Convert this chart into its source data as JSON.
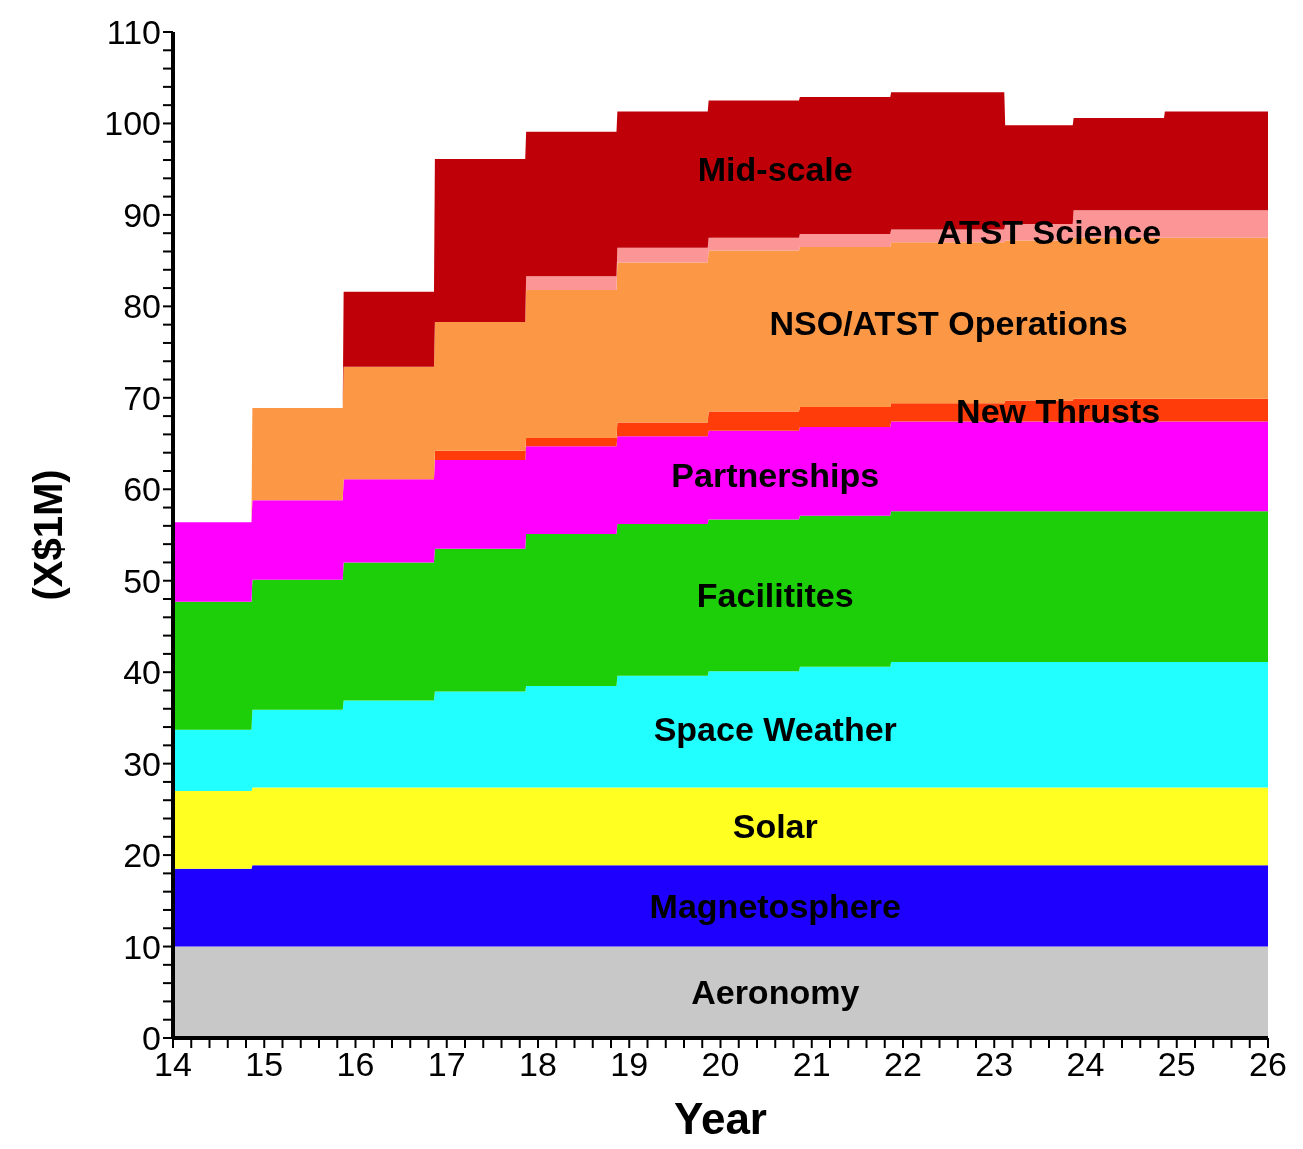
{
  "chart_data": {
    "type": "area",
    "stacked": true,
    "xlabel": "Year",
    "ylabel": "(X$1M)",
    "x": [
      14,
      14.86,
      14.87,
      15.86,
      15.87,
      16.86,
      16.87,
      17.86,
      17.87,
      18.86,
      18.87,
      19.86,
      19.87,
      20.86,
      20.87,
      21.86,
      21.87,
      23.11,
      23.12,
      23.86,
      23.87,
      24.86,
      24.87,
      26
    ],
    "xlim": [
      14,
      26
    ],
    "ylim": [
      0,
      110
    ],
    "xticks": [
      14,
      {
        "value": 14.2,
        "label": null
      },
      {
        "value": 14.4,
        "label": null
      },
      {
        "value": 14.6,
        "label": null
      },
      {
        "value": 14.8,
        "label": null
      },
      15,
      {
        "value": 15.2,
        "label": null
      },
      {
        "value": 15.4,
        "label": null
      },
      {
        "value": 15.6,
        "label": null
      },
      {
        "value": 15.8,
        "label": null
      },
      16,
      {
        "value": 16.2,
        "label": null
      },
      {
        "value": 16.4,
        "label": null
      },
      {
        "value": 16.6,
        "label": null
      },
      {
        "value": 16.8,
        "label": null
      },
      17,
      {
        "value": 17.2,
        "label": null
      },
      {
        "value": 17.4,
        "label": null
      },
      {
        "value": 17.6,
        "label": null
      },
      {
        "value": 17.8,
        "label": null
      },
      18,
      {
        "value": 18.2,
        "label": null
      },
      {
        "value": 18.4,
        "label": null
      },
      {
        "value": 18.6,
        "label": null
      },
      {
        "value": 18.8,
        "label": null
      },
      19,
      {
        "value": 19.2,
        "label": null
      },
      {
        "value": 19.4,
        "label": null
      },
      {
        "value": 19.6,
        "label": null
      },
      {
        "value": 19.8,
        "label": null
      },
      20,
      {
        "value": 20.2,
        "label": null
      },
      {
        "value": 20.4,
        "label": null
      },
      {
        "value": 20.6,
        "label": null
      },
      {
        "value": 20.8,
        "label": null
      },
      21,
      {
        "value": 21.2,
        "label": null
      },
      {
        "value": 21.4,
        "label": null
      },
      {
        "value": 21.6,
        "label": null
      },
      {
        "value": 21.8,
        "label": null
      },
      22,
      {
        "value": 22.2,
        "label": null
      },
      {
        "value": 22.4,
        "label": null
      },
      {
        "value": 22.6,
        "label": null
      },
      {
        "value": 22.8,
        "label": null
      },
      23,
      {
        "value": 23.2,
        "label": null
      },
      {
        "value": 23.4,
        "label": null
      },
      {
        "value": 23.6,
        "label": null
      },
      {
        "value": 23.8,
        "label": null
      },
      24,
      {
        "value": 24.2,
        "label": null
      },
      {
        "value": 24.4,
        "label": null
      },
      {
        "value": 24.6,
        "label": null
      },
      {
        "value": 24.8,
        "label": null
      },
      25,
      {
        "value": 25.2,
        "label": null
      },
      {
        "value": 25.4,
        "label": null
      },
      {
        "value": 25.6,
        "label": null
      },
      {
        "value": 25.8,
        "label": null
      },
      26
    ],
    "yticks": [
      0,
      {
        "value": 2,
        "label": null
      },
      {
        "value": 4,
        "label": null
      },
      {
        "value": 6,
        "label": null
      },
      {
        "value": 8,
        "label": null
      },
      10,
      {
        "value": 12,
        "label": null
      },
      {
        "value": 14,
        "label": null
      },
      {
        "value": 16,
        "label": null
      },
      {
        "value": 18,
        "label": null
      },
      20,
      {
        "value": 22,
        "label": null
      },
      {
        "value": 24,
        "label": null
      },
      {
        "value": 26,
        "label": null
      },
      {
        "value": 28,
        "label": null
      },
      30,
      {
        "value": 32,
        "label": null
      },
      {
        "value": 34,
        "label": null
      },
      {
        "value": 36,
        "label": null
      },
      {
        "value": 38,
        "label": null
      },
      40,
      {
        "value": 42,
        "label": null
      },
      {
        "value": 44,
        "label": null
      },
      {
        "value": 46,
        "label": null
      },
      {
        "value": 48,
        "label": null
      },
      50,
      {
        "value": 52,
        "label": null
      },
      {
        "value": 54,
        "label": null
      },
      {
        "value": 56,
        "label": null
      },
      {
        "value": 58,
        "label": null
      },
      60,
      {
        "value": 62,
        "label": null
      },
      {
        "value": 64,
        "label": null
      },
      {
        "value": 66,
        "label": null
      },
      {
        "value": 68,
        "label": null
      },
      70,
      {
        "value": 72,
        "label": null
      },
      {
        "value": 74,
        "label": null
      },
      {
        "value": 76,
        "label": null
      },
      {
        "value": 78,
        "label": null
      },
      80,
      {
        "value": 82,
        "label": null
      },
      {
        "value": 84,
        "label": null
      },
      {
        "value": 86,
        "label": null
      },
      {
        "value": 88,
        "label": null
      },
      90,
      {
        "value": 92,
        "label": null
      },
      {
        "value": 94,
        "label": null
      },
      {
        "value": 96,
        "label": null
      },
      {
        "value": 98,
        "label": null
      },
      100,
      {
        "value": 102,
        "label": null
      },
      {
        "value": 104,
        "label": null
      },
      {
        "value": 106,
        "label": null
      },
      {
        "value": 108,
        "label": null
      },
      110
    ],
    "series": [
      {
        "name": "Aeronomy",
        "color": "#c8c8c8",
        "values": [
          10,
          10,
          10,
          10,
          10,
          10,
          10,
          10,
          10,
          10,
          10,
          10,
          10,
          10,
          10,
          10,
          10,
          10,
          10,
          10,
          10,
          10,
          10,
          10
        ]
      },
      {
        "name": "Magnetosphere",
        "color": "#1e00ff",
        "values": [
          8.5,
          8.5,
          8.9,
          8.9,
          8.9,
          8.9,
          8.9,
          8.9,
          8.9,
          8.9,
          8.9,
          8.9,
          8.9,
          8.9,
          8.9,
          8.9,
          8.9,
          8.9,
          8.9,
          8.9,
          8.9,
          8.9,
          8.9,
          8.9
        ]
      },
      {
        "name": "Solar",
        "color": "#ffff22",
        "values": [
          8.5,
          8.5,
          8.5,
          8.5,
          8.5,
          8.5,
          8.5,
          8.5,
          8.5,
          8.5,
          8.5,
          8.5,
          8.5,
          8.5,
          8.5,
          8.5,
          8.5,
          8.5,
          8.5,
          8.5,
          8.5,
          8.5,
          8.5,
          8.5
        ]
      },
      {
        "name": "Space Weather",
        "color": "#22ffff",
        "values": [
          6.7,
          6.7,
          8.5,
          8.5,
          9.5,
          9.5,
          10.5,
          10.5,
          11.1,
          11.1,
          12.2,
          12.2,
          12.7,
          12.7,
          13.2,
          13.2,
          13.7,
          13.7,
          13.7,
          13.7,
          13.7,
          13.7,
          13.7,
          13.7
        ]
      },
      {
        "name": "Facilitites",
        "color": "#1ccf08",
        "values": [
          14.0,
          14.0,
          14.2,
          14.2,
          15.1,
          15.1,
          15.6,
          15.6,
          16.6,
          16.6,
          16.6,
          16.6,
          16.6,
          16.6,
          16.5,
          16.5,
          16.5,
          16.5,
          16.5,
          16.5,
          16.5,
          16.5,
          16.5,
          16.5
        ]
      },
      {
        "name": "Partnerships",
        "color": "#ff00ff",
        "values": [
          8.7,
          8.7,
          8.7,
          8.7,
          9.1,
          9.1,
          9.7,
          9.7,
          9.6,
          9.6,
          9.6,
          9.6,
          9.7,
          9.7,
          9.7,
          9.7,
          9.8,
          9.8,
          9.8,
          9.8,
          9.8,
          9.8,
          9.8,
          9.8
        ]
      },
      {
        "name": "New Thrusts",
        "color": "#ff3c0a",
        "values": [
          0,
          0,
          0,
          0,
          0,
          0,
          1.0,
          1.0,
          0.9,
          0.9,
          1.5,
          1.5,
          2.1,
          2.1,
          2.2,
          2.2,
          2.0,
          2.0,
          2.3,
          2.3,
          2.5,
          2.5,
          2.5,
          2.5
        ]
      },
      {
        "name": "NSO/ATST Operations",
        "color": "#fc9845",
        "values": [
          0,
          0,
          10.1,
          10.1,
          12.3,
          12.3,
          14.1,
          14.1,
          16.2,
          16.2,
          17.5,
          17.5,
          17.6,
          17.6,
          17.5,
          17.5,
          17.6,
          17.6,
          17.5,
          17.5,
          17.6,
          17.6,
          17.6,
          17.6
        ]
      },
      {
        "name": "ATST Science",
        "color": "#fc9696",
        "values": [
          0,
          0,
          0,
          0,
          0,
          0,
          0,
          0,
          1.5,
          1.5,
          1.6,
          1.6,
          1.4,
          1.4,
          1.4,
          1.4,
          1.4,
          1.4,
          1.8,
          1.8,
          3.0,
          3.0,
          3.0,
          3.0
        ]
      },
      {
        "name": "Mid-scale",
        "color": "#c00008",
        "values": [
          0,
          0,
          0,
          0,
          8.2,
          8.2,
          17.8,
          17.8,
          15.8,
          15.8,
          14.9,
          14.9,
          15.0,
          15.0,
          15.0,
          15.0,
          15.0,
          15.0,
          10.8,
          10.8,
          10.1,
          10.1,
          10.8,
          10.8
        ]
      }
    ]
  }
}
